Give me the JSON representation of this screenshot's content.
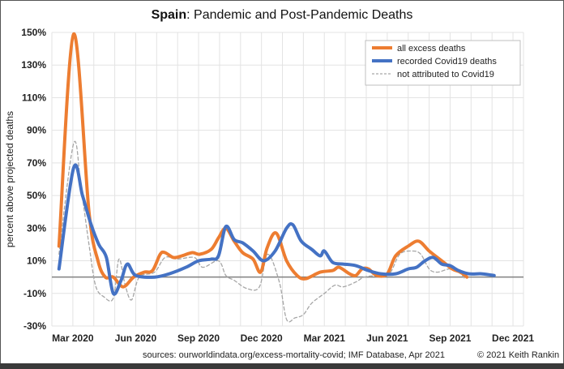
{
  "chart_data": {
    "type": "line",
    "title_bold": "Spain",
    "title_rest": ": Pandemic and Post-Pandemic Deaths",
    "xlabel": "",
    "ylabel": "percent above projected deaths",
    "ylim": [
      -30,
      150
    ],
    "xlim_months_from_mar2020": [
      -1,
      21.5
    ],
    "y_ticks": [
      150,
      130,
      110,
      90,
      70,
      50,
      30,
      10,
      -10,
      -30
    ],
    "y_tick_labels": [
      "150%",
      "130%",
      "110%",
      "90%",
      "70%",
      "50%",
      "30%",
      "10%",
      "-10%",
      "-30%"
    ],
    "x_ticks_months_from_mar2020": [
      0,
      3,
      6,
      9,
      12,
      15,
      18,
      21
    ],
    "x_tick_labels": [
      "Mar 2020",
      "Jun 2020",
      "Sep 2020",
      "Dec 2020",
      "Mar 2021",
      "Jun 2021",
      "Sep 2021",
      "Dec 2021"
    ],
    "grid": true,
    "grid_interval_months": 1,
    "zero_line": true,
    "legend_position": "top-right",
    "series": [
      {
        "name": "all excess deaths",
        "color": "#ed7d31",
        "style": "solid-thick",
        "x": [
          -0.66,
          0.04,
          0.77,
          1.2,
          1.55,
          1.93,
          2.4,
          2.9,
          3.4,
          3.8,
          4.17,
          4.4,
          4.8,
          5.2,
          5.7,
          6.06,
          6.6,
          6.95,
          7.3,
          7.7,
          8.1,
          8.6,
          8.96,
          9.27,
          9.7,
          10.2,
          10.7,
          11.1,
          11.8,
          12.4,
          12.7,
          13.2,
          13.5,
          13.8,
          14.1,
          14.5,
          15.0,
          15.4,
          16.0,
          16.5,
          17.0,
          17.6,
          18.1,
          18.5,
          18.8
        ],
        "y": [
          19,
          149,
          40,
          10,
          0,
          0,
          -6,
          0,
          3,
          4,
          14,
          15,
          12,
          13,
          15,
          14,
          17,
          24,
          30,
          22,
          15,
          11,
          3,
          18,
          27,
          10,
          1,
          -1,
          3,
          4,
          6,
          2,
          1,
          5,
          5,
          1,
          2,
          13,
          19,
          22,
          16,
          10,
          5,
          3,
          0
        ]
      },
      {
        "name": "recorded Covid19 deaths",
        "color": "#4472c4",
        "style": "solid-thick",
        "x": [
          -0.66,
          0.04,
          0.46,
          0.85,
          1.24,
          1.6,
          1.93,
          2.3,
          2.6,
          3.0,
          3.9,
          4.6,
          5.4,
          6.0,
          6.6,
          6.95,
          7.3,
          7.7,
          8.1,
          8.6,
          9.1,
          9.65,
          10.2,
          10.5,
          10.9,
          11.4,
          11.8,
          12.0,
          12.4,
          12.9,
          13.5,
          14.1,
          14.7,
          15.4,
          16.0,
          16.4,
          16.8,
          17.2,
          17.6,
          18.0,
          18.4,
          18.9,
          19.5,
          20.1
        ],
        "y": [
          5,
          67,
          50,
          33,
          20,
          12,
          -10,
          -2,
          8,
          1,
          0,
          2,
          6,
          10,
          11,
          13,
          31,
          23,
          21,
          16,
          10,
          16,
          30,
          32,
          22,
          17,
          13,
          16,
          9,
          8,
          7,
          4,
          2,
          2,
          5,
          6,
          10,
          12,
          8,
          7,
          4,
          2,
          2,
          1
        ]
      },
      {
        "name": "not attributed to Covid19",
        "color": "#a6a6a6",
        "style": "dashed-thin",
        "x": [
          -0.66,
          0.04,
          0.39,
          0.77,
          1.08,
          1.47,
          1.93,
          2.2,
          2.5,
          2.8,
          3.17,
          3.9,
          4.4,
          5.0,
          5.8,
          6.2,
          6.95,
          7.3,
          7.7,
          8.3,
          8.9,
          9.3,
          9.85,
          10.2,
          10.6,
          11.0,
          11.4,
          12.0,
          12.5,
          12.9,
          13.5,
          13.9,
          14.5,
          15.1,
          15.6,
          16.2,
          16.6,
          17.0,
          17.4,
          18.0,
          18.5,
          18.7
        ],
        "y": [
          14,
          82,
          55,
          20,
          -5,
          -12,
          -13,
          11,
          -5,
          -14,
          0,
          3,
          12,
          11,
          12,
          6,
          10,
          1,
          -2,
          -7,
          -6,
          14,
          -3,
          -26,
          -25,
          -23,
          -16,
          -10,
          -5,
          -6,
          -3,
          0,
          1,
          2,
          14,
          16,
          14,
          5,
          3,
          5,
          2,
          -1
        ]
      }
    ]
  },
  "footer": {
    "sources": "sources: ourworldindata.org/excess-mortality-covid;  IMF Database, Apr 2021",
    "copyright": "© 2021 Keith Rankin"
  }
}
